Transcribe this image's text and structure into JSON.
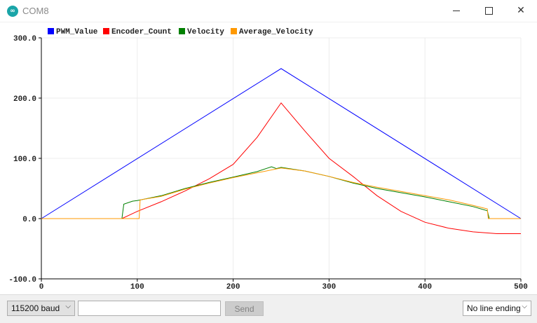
{
  "window": {
    "title": "COM8",
    "icon": "arduino-icon"
  },
  "colors": {
    "PWM_Value": "#0000ff",
    "Encoder_Count": "#ff0000",
    "Velocity": "#008000",
    "Average_Velocity": "#ff9900"
  },
  "chart_data": {
    "type": "line",
    "xlim": [
      0,
      500
    ],
    "ylim": [
      -100,
      300
    ],
    "grid": true,
    "legend_position": "top-left",
    "x_ticks": [
      "0",
      "100",
      "200",
      "300",
      "400",
      "500"
    ],
    "y_ticks": [
      "300.0",
      "200.0",
      "100.0",
      "0.0",
      "-100.0"
    ],
    "series": [
      {
        "name": "PWM_Value",
        "x": [
          0,
          250,
          500
        ],
        "values": [
          0,
          249,
          0
        ]
      },
      {
        "name": "Encoder_Count",
        "x": [
          0,
          84,
          100,
          125,
          150,
          175,
          200,
          225,
          250,
          275,
          300,
          325,
          350,
          375,
          400,
          425,
          450,
          475,
          500
        ],
        "values": [
          0,
          0,
          12,
          28,
          46,
          66,
          90,
          135,
          192,
          145,
          100,
          70,
          38,
          12,
          -6,
          -16,
          -22,
          -25,
          -25
        ]
      },
      {
        "name": "Velocity",
        "x": [
          0,
          84,
          86,
          95,
          100,
          125,
          150,
          175,
          200,
          225,
          240,
          245,
          250,
          275,
          300,
          325,
          350,
          375,
          400,
          425,
          450,
          465,
          467,
          500
        ],
        "values": [
          0,
          0,
          24,
          29,
          30,
          38,
          50,
          60,
          69,
          78,
          86,
          83,
          85,
          79,
          70,
          59,
          50,
          43,
          36,
          28,
          20,
          13,
          0,
          0
        ]
      },
      {
        "name": "Average_Velocity",
        "x": [
          0,
          102,
          103,
          125,
          150,
          175,
          200,
          225,
          250,
          275,
          300,
          325,
          350,
          375,
          400,
          425,
          450,
          465,
          466,
          500
        ],
        "values": [
          0,
          0,
          31,
          37,
          49,
          59,
          68,
          76,
          84,
          79,
          70,
          60,
          52,
          45,
          38,
          31,
          22,
          16,
          0,
          0
        ]
      }
    ]
  },
  "toolbar": {
    "baud_label": "115200 baud",
    "send_input_value": "",
    "send_label": "Send",
    "line_ending_label": "No line ending"
  }
}
